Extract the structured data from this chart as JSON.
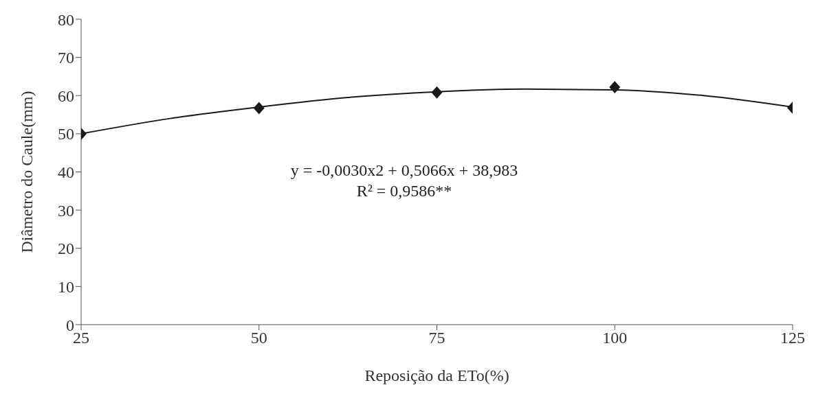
{
  "chart_data": {
    "type": "scatter",
    "xlabel": "Reposição da ETo(%)",
    "ylabel": "Diâmetro do Caule(mm)",
    "annotations": [
      "y = -0,0030x2 + 0,5066x + 38,983",
      "R² = 0,9586**"
    ],
    "xlim": [
      25,
      125
    ],
    "xticks": [
      25,
      50,
      75,
      100,
      125
    ],
    "ylim": [
      0,
      80
    ],
    "yticks": [
      0,
      10,
      20,
      30,
      40,
      50,
      60,
      70,
      80
    ],
    "grid": false,
    "series": [
      {
        "marker": "diamond",
        "color": "#1a1a1a",
        "x": [
          25,
          50,
          75,
          100,
          125
        ],
        "values": [
          50,
          56.7,
          60.8,
          62.2,
          56.8
        ]
      },
      {
        "type": "line",
        "marker": "none",
        "line_style": "solid",
        "color": "#1a1a1a",
        "x": [
          25,
          37.5,
          50,
          62.5,
          75,
          87.5,
          100,
          112.5,
          125
        ],
        "values": [
          50,
          54,
          57,
          59.5,
          61,
          61.7,
          61.5,
          60,
          57
        ]
      }
    ]
  }
}
